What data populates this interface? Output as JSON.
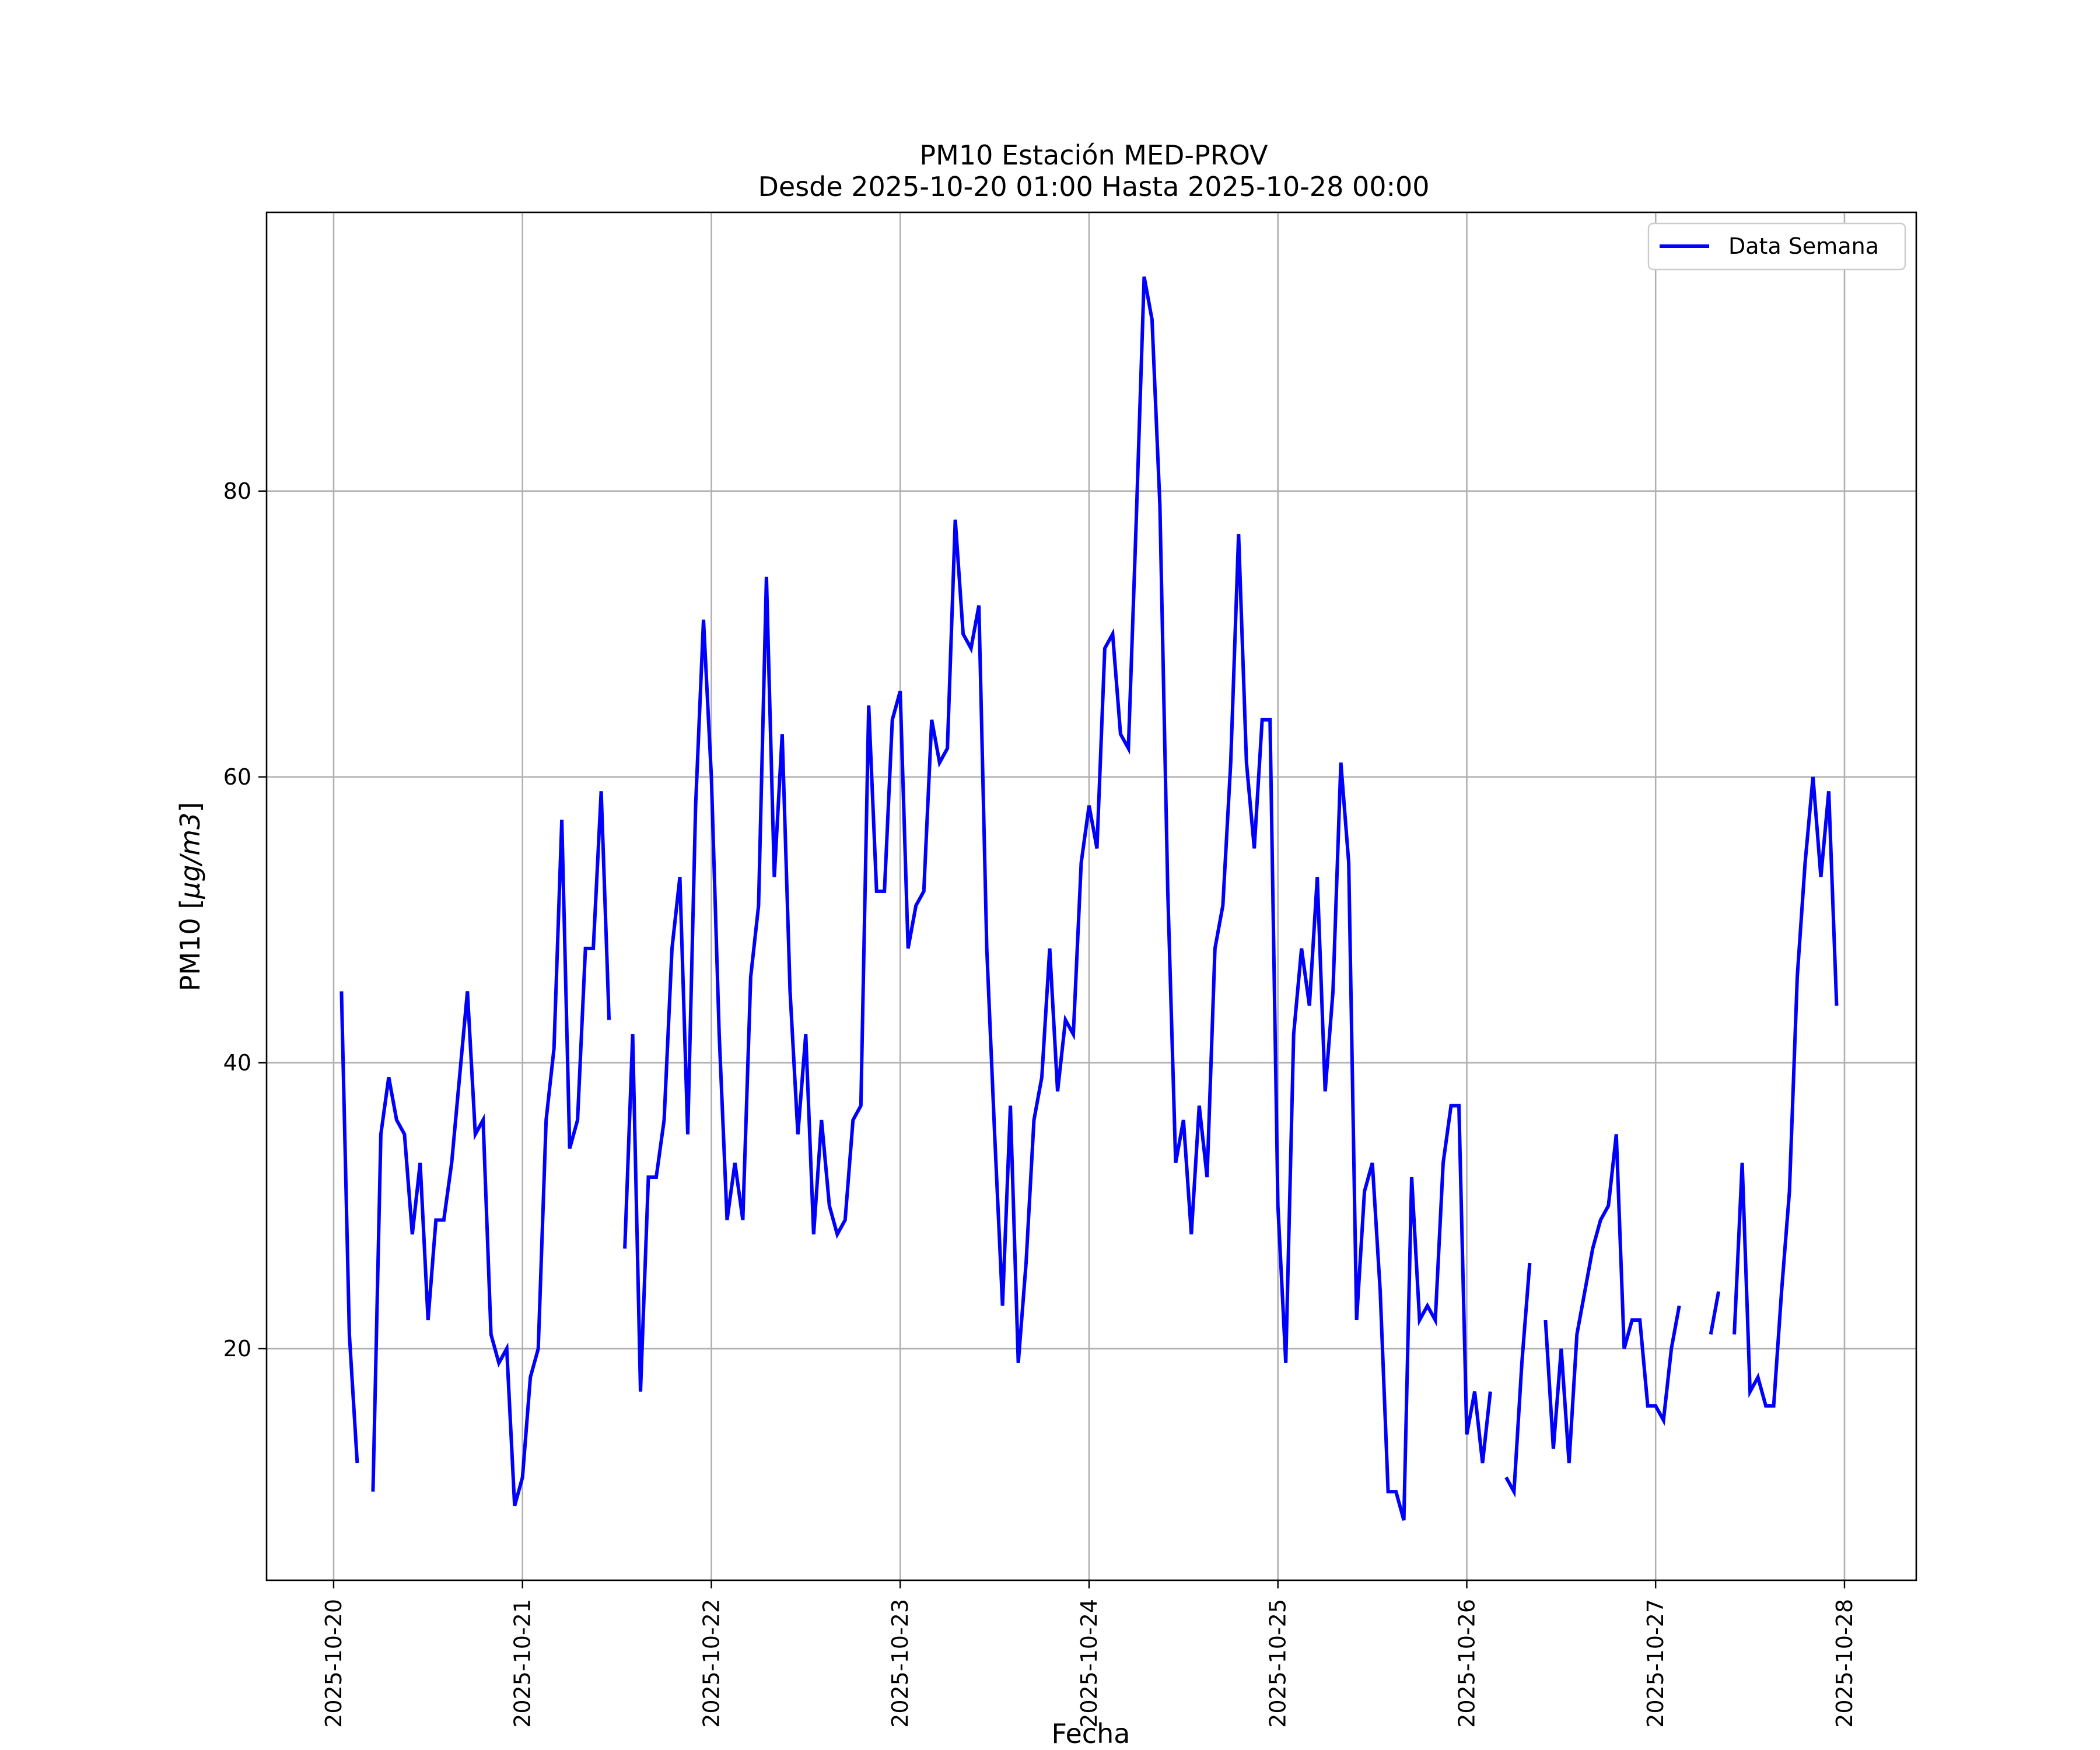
{
  "chart_data": {
    "type": "line",
    "title": "PM10 Estación MED-PROV",
    "subtitle": "Desde 2025-10-20 01:00 Hasta 2025-10-28 00:00",
    "xlabel": "Fecha",
    "ylabel_main": "PM10 [",
    "ylabel_unit": "μg/m3",
    "ylabel_end": "]",
    "x_ticks": [
      "2025-10-20",
      "2025-10-21",
      "2025-10-22",
      "2025-10-23",
      "2025-10-24",
      "2025-10-25",
      "2025-10-26",
      "2025-10-27",
      "2025-10-28"
    ],
    "y_ticks": [
      20,
      40,
      60,
      80
    ],
    "xlim_days": [
      -0.355,
      8.38
    ],
    "ylim": [
      3.8,
      99.5
    ],
    "grid": true,
    "legend_position": "top-right",
    "color": "#0000ff",
    "series": [
      {
        "name": "Data Semana",
        "x_start_day": 0.0417,
        "x_step_hours": 1,
        "values": [
          45,
          21,
          12,
          null,
          10,
          35,
          39,
          36,
          35,
          28,
          33,
          22,
          29,
          29,
          33,
          39,
          45,
          35,
          36,
          21,
          19,
          20,
          9,
          11,
          18,
          20,
          36,
          41,
          57,
          34,
          36,
          48,
          48,
          59,
          43,
          null,
          27,
          42,
          17,
          32,
          32,
          36,
          48,
          53,
          35,
          58,
          71,
          60,
          42,
          29,
          33,
          29,
          46,
          51,
          74,
          53,
          63,
          45,
          35,
          42,
          28,
          36,
          30,
          28,
          29,
          36,
          37,
          65,
          52,
          52,
          64,
          66,
          48,
          51,
          52,
          64,
          61,
          62,
          78,
          70,
          69,
          72,
          48,
          35,
          23,
          37,
          19,
          26,
          36,
          39,
          48,
          38,
          43,
          42,
          54,
          58,
          55,
          69,
          70,
          63,
          62,
          78,
          95,
          92,
          79,
          52,
          33,
          36,
          28,
          37,
          32,
          48,
          51,
          61,
          77,
          61,
          55,
          64,
          64,
          30,
          19,
          42,
          48,
          44,
          53,
          38,
          45,
          61,
          54,
          22,
          31,
          33,
          24,
          10,
          10,
          8,
          32,
          22,
          23,
          22,
          33,
          37,
          37,
          14,
          17,
          12,
          17,
          null,
          11,
          10,
          19,
          26,
          null,
          22,
          13,
          20,
          12,
          21,
          24,
          27,
          29,
          30,
          35,
          20,
          22,
          22,
          16,
          16,
          15,
          20,
          23,
          null,
          null,
          null,
          21,
          24,
          null,
          21,
          33,
          17,
          18,
          16,
          16,
          24,
          31,
          46,
          54,
          60,
          53,
          59,
          44
        ]
      }
    ]
  }
}
